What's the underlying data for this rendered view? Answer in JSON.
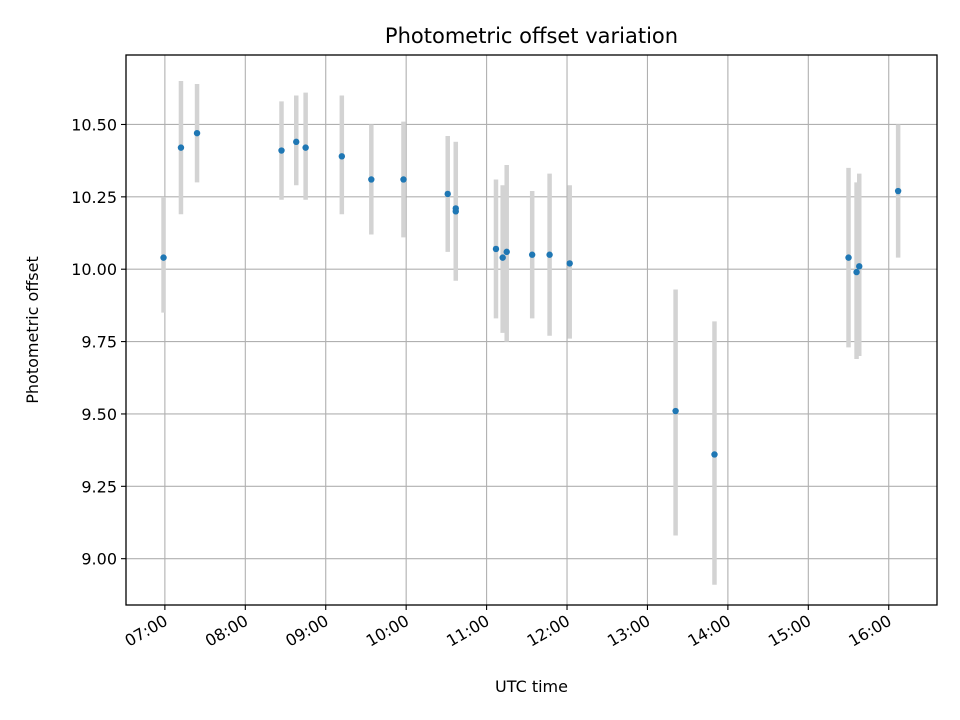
{
  "chart_data": {
    "type": "scatter",
    "title": "Photometric offset variation",
    "xlabel": "UTC time",
    "ylabel": "Photometric offset",
    "xlim": [
      "06:31",
      "16:36"
    ],
    "ylim": [
      8.84,
      10.74
    ],
    "grid": true,
    "x_ticks": [
      "07:00",
      "08:00",
      "09:00",
      "10:00",
      "11:00",
      "12:00",
      "13:00",
      "14:00",
      "15:00",
      "16:00"
    ],
    "y_ticks": [
      "9.00",
      "9.25",
      "9.50",
      "9.75",
      "10.00",
      "10.25",
      "10.50"
    ],
    "colors": {
      "point": "#1f77b4",
      "errorbar": "#d3d3d3",
      "grid": "#b0b0b0"
    },
    "series": [
      {
        "points": [
          {
            "x": "06:59",
            "y": 10.04,
            "low": 9.85,
            "high": 10.25
          },
          {
            "x": "07:12",
            "y": 10.42,
            "low": 10.19,
            "high": 10.65
          },
          {
            "x": "07:24",
            "y": 10.47,
            "low": 10.3,
            "high": 10.64
          },
          {
            "x": "08:27",
            "y": 10.41,
            "low": 10.24,
            "high": 10.58
          },
          {
            "x": "08:38",
            "y": 10.44,
            "low": 10.29,
            "high": 10.6
          },
          {
            "x": "08:45",
            "y": 10.42,
            "low": 10.24,
            "high": 10.61
          },
          {
            "x": "09:12",
            "y": 10.39,
            "low": 10.19,
            "high": 10.6
          },
          {
            "x": "09:34",
            "y": 10.31,
            "low": 10.12,
            "high": 10.5
          },
          {
            "x": "09:58",
            "y": 10.31,
            "low": 10.11,
            "high": 10.51
          },
          {
            "x": "10:31",
            "y": 10.26,
            "low": 10.06,
            "high": 10.46
          },
          {
            "x": "10:37",
            "y": 10.21,
            "low": 9.98,
            "high": 10.44
          },
          {
            "x": "10:37",
            "y": 10.2,
            "low": 9.96,
            "high": 10.44
          },
          {
            "x": "11:07",
            "y": 10.07,
            "low": 9.83,
            "high": 10.31
          },
          {
            "x": "11:12",
            "y": 10.04,
            "low": 9.78,
            "high": 10.29
          },
          {
            "x": "11:15",
            "y": 10.06,
            "low": 9.75,
            "high": 10.36
          },
          {
            "x": "11:34",
            "y": 10.05,
            "low": 9.83,
            "high": 10.27
          },
          {
            "x": "11:47",
            "y": 10.05,
            "low": 9.77,
            "high": 10.33
          },
          {
            "x": "12:02",
            "y": 10.02,
            "low": 9.76,
            "high": 10.29
          },
          {
            "x": "13:21",
            "y": 9.51,
            "low": 9.08,
            "high": 9.93
          },
          {
            "x": "13:50",
            "y": 9.36,
            "low": 8.91,
            "high": 9.82
          },
          {
            "x": "15:30",
            "y": 10.04,
            "low": 9.73,
            "high": 10.35
          },
          {
            "x": "15:36",
            "y": 9.99,
            "low": 9.69,
            "high": 10.3
          },
          {
            "x": "15:38",
            "y": 10.01,
            "low": 9.7,
            "high": 10.33
          },
          {
            "x": "16:07",
            "y": 10.27,
            "low": 10.04,
            "high": 10.5
          }
        ]
      }
    ]
  }
}
